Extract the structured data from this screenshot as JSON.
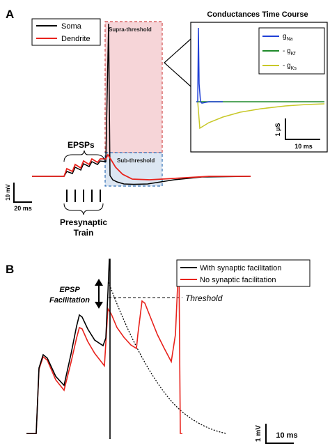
{
  "panel_a": {
    "letter": "A",
    "legend": [
      {
        "label": "Soma",
        "color": "#000000"
      },
      {
        "label": "Dendrite",
        "color": "#e8221c"
      }
    ],
    "region_supra": "Supra-threshold",
    "region_sub": "Sub-threshold",
    "epsps_label": "EPSPs",
    "presynaptic_line1": "Presynaptic",
    "presynaptic_line2": "Train",
    "scale_v": "10 mV",
    "scale_t": "20 ms",
    "inset": {
      "title": "Conductances Time Course",
      "legend": [
        {
          "main": "g",
          "sub": "Na",
          "color": "#1f3fd6"
        },
        {
          "main": "- g",
          "sub": "Kf",
          "color": "#1e8a2a"
        },
        {
          "main": "- g",
          "sub": "Ks",
          "color": "#c8c828"
        }
      ],
      "scale_v": "1 μS",
      "scale_t": "10 ms"
    }
  },
  "panel_b": {
    "letter": "B",
    "legend": [
      {
        "label": "With synaptic facilitation",
        "color": "#000000"
      },
      {
        "label": "No synaptic facilitation",
        "color": "#e8221c"
      }
    ],
    "epsp_line1": "EPSP",
    "epsp_line2": "Facilitation",
    "threshold": "Threshold",
    "scale_v": "1 mV",
    "scale_t": "10 ms"
  },
  "colors": {
    "soma": "#000000",
    "dendrite": "#e8221c",
    "supra_fill": "#f6d5d8",
    "sub_fill": "#dce6f2",
    "supra_border": "#d24b4b",
    "sub_border": "#2f6db5"
  }
}
